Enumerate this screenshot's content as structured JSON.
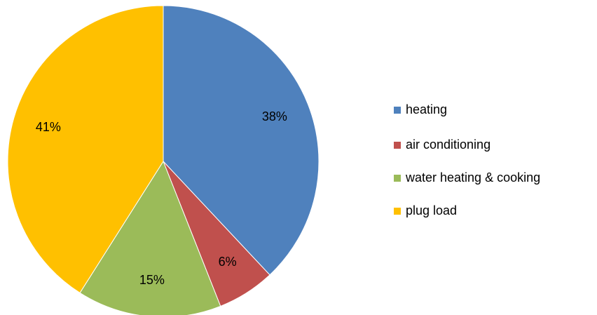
{
  "chart_data": {
    "type": "pie",
    "categories": [
      "heating",
      "air conditioning",
      "water heating & cooking",
      "plug load"
    ],
    "values": [
      38,
      6,
      15,
      41
    ],
    "value_labels": [
      "38%",
      "6%",
      "15%",
      "41%"
    ],
    "colors": [
      "#4f81bd",
      "#c0504d",
      "#9bbb59",
      "#ffc000"
    ],
    "legend": "right"
  }
}
